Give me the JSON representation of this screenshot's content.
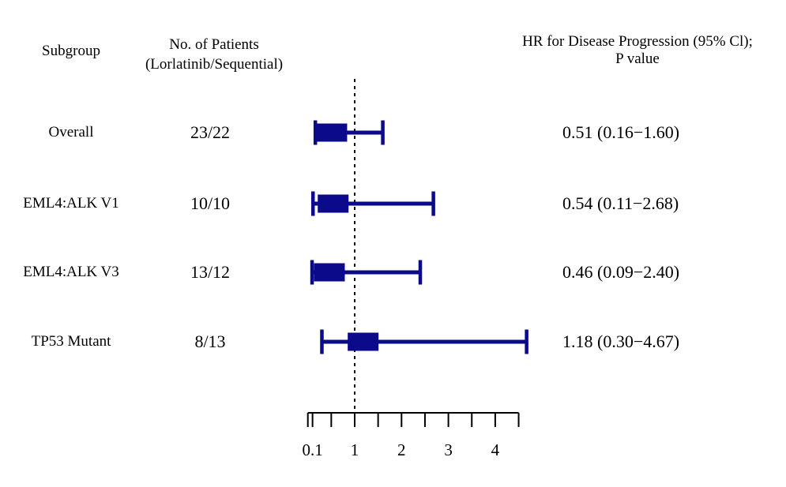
{
  "header": {
    "col_subgroup": "Subgroup",
    "col_patients_line1": "No. of Patients",
    "col_patients_line2": "(Lorlatinib/Sequential)",
    "col_hr_line1": "HR for Disease Progression (95% Cl);",
    "col_hr_line2": "P value"
  },
  "chart_data": {
    "type": "forest",
    "title": "",
    "x_axis": {
      "scale": "linear",
      "range": [
        0,
        4.5
      ],
      "labeled_ticks": [
        0.1,
        1,
        2,
        3,
        4
      ],
      "tick_labels": [
        "0.1",
        "1",
        "2",
        "3",
        "4"
      ],
      "minor_ticks": [
        0.5,
        1.5,
        2.5,
        3.5
      ],
      "reference_line": 1
    },
    "marker_color": "#0a0a8a",
    "line_color": "#000000",
    "rows": [
      {
        "label": "Overall",
        "patients": "23/22",
        "hr_text": "0.51 (0.16−1.60)",
        "hr": 0.51,
        "ci_lower": 0.16,
        "ci_upper": 1.6
      },
      {
        "label": "EML4:ALK V1",
        "patients": "10/10",
        "hr_text": "0.54 (0.11−2.68)",
        "hr": 0.54,
        "ci_lower": 0.11,
        "ci_upper": 2.68
      },
      {
        "label": "EML4:ALK V3",
        "patients": "13/12",
        "hr_text": "0.46 (0.09−2.40)",
        "hr": 0.46,
        "ci_lower": 0.09,
        "ci_upper": 2.4
      },
      {
        "label": "TP53 Mutant",
        "patients": "8/13",
        "hr_text": "1.18 (0.30−4.67)",
        "hr": 1.18,
        "ci_lower": 0.3,
        "ci_upper": 4.67
      }
    ]
  }
}
